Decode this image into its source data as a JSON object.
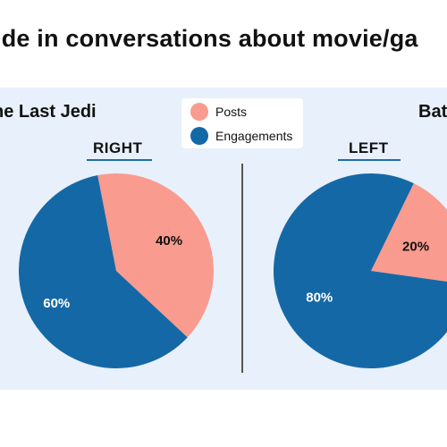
{
  "title": "ide in conversations about movie/ga",
  "colors": {
    "posts": "#f99b8e",
    "engagements": "#1568a6",
    "label_on_light": "#111111",
    "label_on_dark": "#ffffff"
  },
  "legend": [
    {
      "name": "Posts",
      "color": "#f99b8e"
    },
    {
      "name": "Engagements",
      "color": "#1568a6"
    }
  ],
  "chart_data": [
    {
      "type": "pie",
      "title": "he Last Jedi",
      "side_label": "RIGHT",
      "slices": [
        {
          "name": "Posts",
          "value": 40,
          "label": "40%"
        },
        {
          "name": "Engagements",
          "value": 60,
          "label": "60%"
        }
      ]
    },
    {
      "type": "pie",
      "title": "Bat",
      "side_label": "LEFT",
      "slices": [
        {
          "name": "Posts",
          "value": 20,
          "label": "20%"
        },
        {
          "name": "Engagements",
          "value": 80,
          "label": "80%"
        }
      ]
    }
  ]
}
